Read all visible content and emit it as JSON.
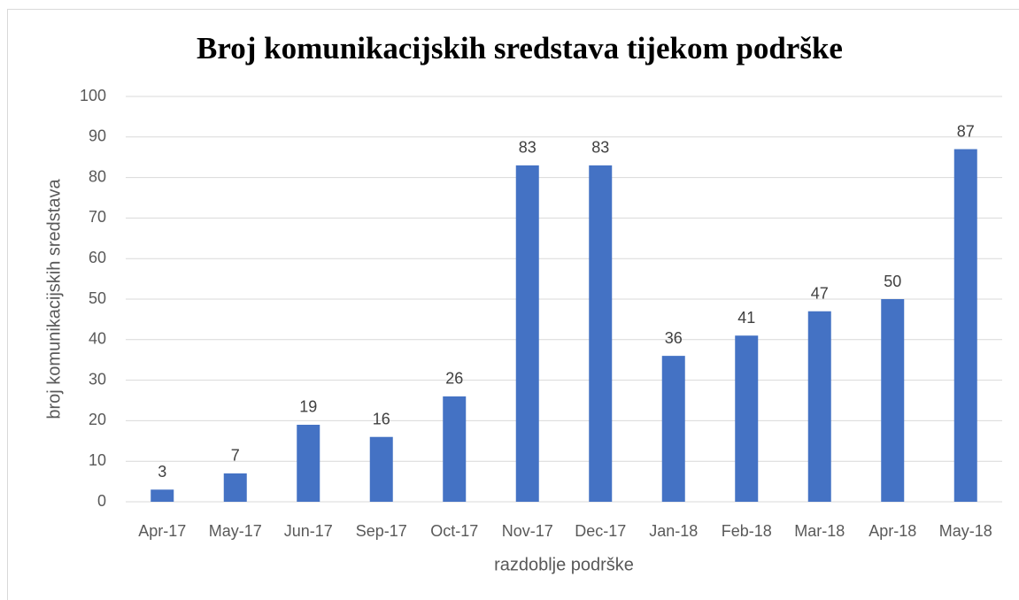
{
  "chart_data": {
    "type": "bar",
    "title": "Broj komunikacijskih sredstava tijekom podrške",
    "x_label": "razdoblje podrške",
    "y_label": "broj komunikacijskih sredstava",
    "categories": [
      "Apr-17",
      "May-17",
      "Jun-17",
      "Sep-17",
      "Oct-17",
      "Nov-17",
      "Dec-17",
      "Jan-18",
      "Feb-18",
      "Mar-18",
      "Apr-18",
      "May-18"
    ],
    "values": [
      3,
      7,
      19,
      16,
      26,
      83,
      83,
      36,
      41,
      47,
      50,
      87
    ],
    "color": "#4472c4",
    "ylim": [
      0,
      100
    ],
    "yticks": [
      0,
      10,
      20,
      30,
      40,
      50,
      60,
      70,
      80,
      90,
      100
    ],
    "grid": true
  }
}
